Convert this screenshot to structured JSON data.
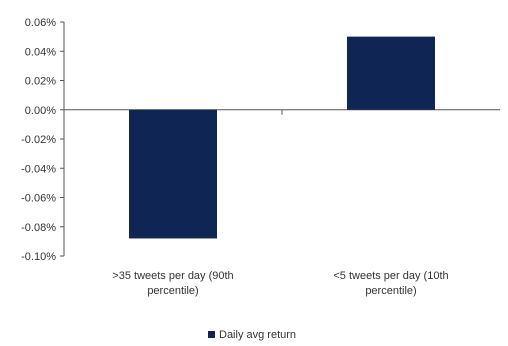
{
  "chart_data": {
    "type": "bar",
    "categories": [
      [
        ">35 tweets per day (90th",
        "percentile)"
      ],
      [
        "<5 tweets per day (10th",
        "percentile)"
      ]
    ],
    "series": [
      {
        "name": "Daily avg return",
        "values": [
          -0.088,
          0.05
        ]
      }
    ],
    "y_ticks": [
      "0.06%",
      "0.04%",
      "0.02%",
      "0.00%",
      "-0.02%",
      "-0.04%",
      "-0.06%",
      "-0.08%",
      "-0.10%"
    ],
    "ylim": [
      -0.1,
      0.06
    ],
    "ytick_step": 0.02,
    "grid": false,
    "legend_position": "bottom"
  },
  "colors": {
    "bar": "#0f2554",
    "axis": "#555555"
  }
}
